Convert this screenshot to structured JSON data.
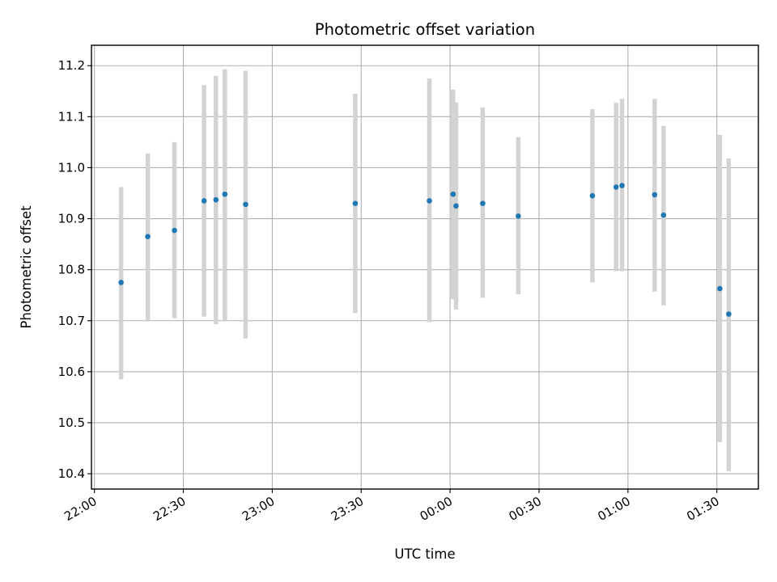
{
  "chart_data": {
    "type": "scatter",
    "title": "Photometric offset variation",
    "xlabel": "UTC time",
    "ylabel": "Photometric offset",
    "grid": true,
    "x_axis": "time",
    "xlim": [
      "21:59",
      "01:44"
    ],
    "ylim": [
      10.37,
      11.24
    ],
    "xticks": [
      {
        "t": "22:00",
        "label": "22:00"
      },
      {
        "t": "22:30",
        "label": "22:30"
      },
      {
        "t": "23:00",
        "label": "23:00"
      },
      {
        "t": "23:30",
        "label": "23:30"
      },
      {
        "t": "00:00",
        "label": "00:00"
      },
      {
        "t": "00:30",
        "label": "00:30"
      },
      {
        "t": "01:00",
        "label": "01:00"
      },
      {
        "t": "01:30",
        "label": "01:30"
      }
    ],
    "yticks": [
      10.4,
      10.5,
      10.6,
      10.7,
      10.8,
      10.9,
      11.0,
      11.1,
      11.2
    ],
    "ytick_labels": [
      "10.4",
      "10.5",
      "10.6",
      "10.7",
      "10.8",
      "10.9",
      "11.0",
      "11.1",
      "11.2"
    ],
    "point_color": "#1f77b4",
    "errorbar_color": "#d3d3d3",
    "points": [
      {
        "t": "22:09",
        "y": 10.775,
        "ylo": 10.585,
        "yhi": 10.962
      },
      {
        "t": "22:18",
        "y": 10.865,
        "ylo": 10.7,
        "yhi": 11.028
      },
      {
        "t": "22:27",
        "y": 10.877,
        "ylo": 10.705,
        "yhi": 11.05
      },
      {
        "t": "22:37",
        "y": 10.935,
        "ylo": 10.708,
        "yhi": 11.162
      },
      {
        "t": "22:41",
        "y": 10.937,
        "ylo": 10.693,
        "yhi": 11.18
      },
      {
        "t": "22:44",
        "y": 10.948,
        "ylo": 10.7,
        "yhi": 11.193
      },
      {
        "t": "22:51",
        "y": 10.928,
        "ylo": 10.665,
        "yhi": 11.19
      },
      {
        "t": "23:28",
        "y": 10.93,
        "ylo": 10.715,
        "yhi": 11.145
      },
      {
        "t": "23:53",
        "y": 10.935,
        "ylo": 10.697,
        "yhi": 11.175
      },
      {
        "t": "00:01",
        "y": 10.948,
        "ylo": 10.742,
        "yhi": 11.153
      },
      {
        "t": "00:02",
        "y": 10.925,
        "ylo": 10.722,
        "yhi": 11.128
      },
      {
        "t": "00:11",
        "y": 10.93,
        "ylo": 10.745,
        "yhi": 11.118
      },
      {
        "t": "00:23",
        "y": 10.905,
        "ylo": 10.752,
        "yhi": 11.06
      },
      {
        "t": "00:48",
        "y": 10.945,
        "ylo": 10.775,
        "yhi": 11.115
      },
      {
        "t": "00:56",
        "y": 10.962,
        "ylo": 10.797,
        "yhi": 11.127
      },
      {
        "t": "00:58",
        "y": 10.965,
        "ylo": 10.797,
        "yhi": 11.135
      },
      {
        "t": "01:09",
        "y": 10.947,
        "ylo": 10.757,
        "yhi": 11.135
      },
      {
        "t": "01:12",
        "y": 10.907,
        "ylo": 10.73,
        "yhi": 11.082
      },
      {
        "t": "01:31",
        "y": 10.763,
        "ylo": 10.462,
        "yhi": 11.064
      },
      {
        "t": "01:34",
        "y": 10.713,
        "ylo": 10.405,
        "yhi": 11.018
      }
    ]
  }
}
